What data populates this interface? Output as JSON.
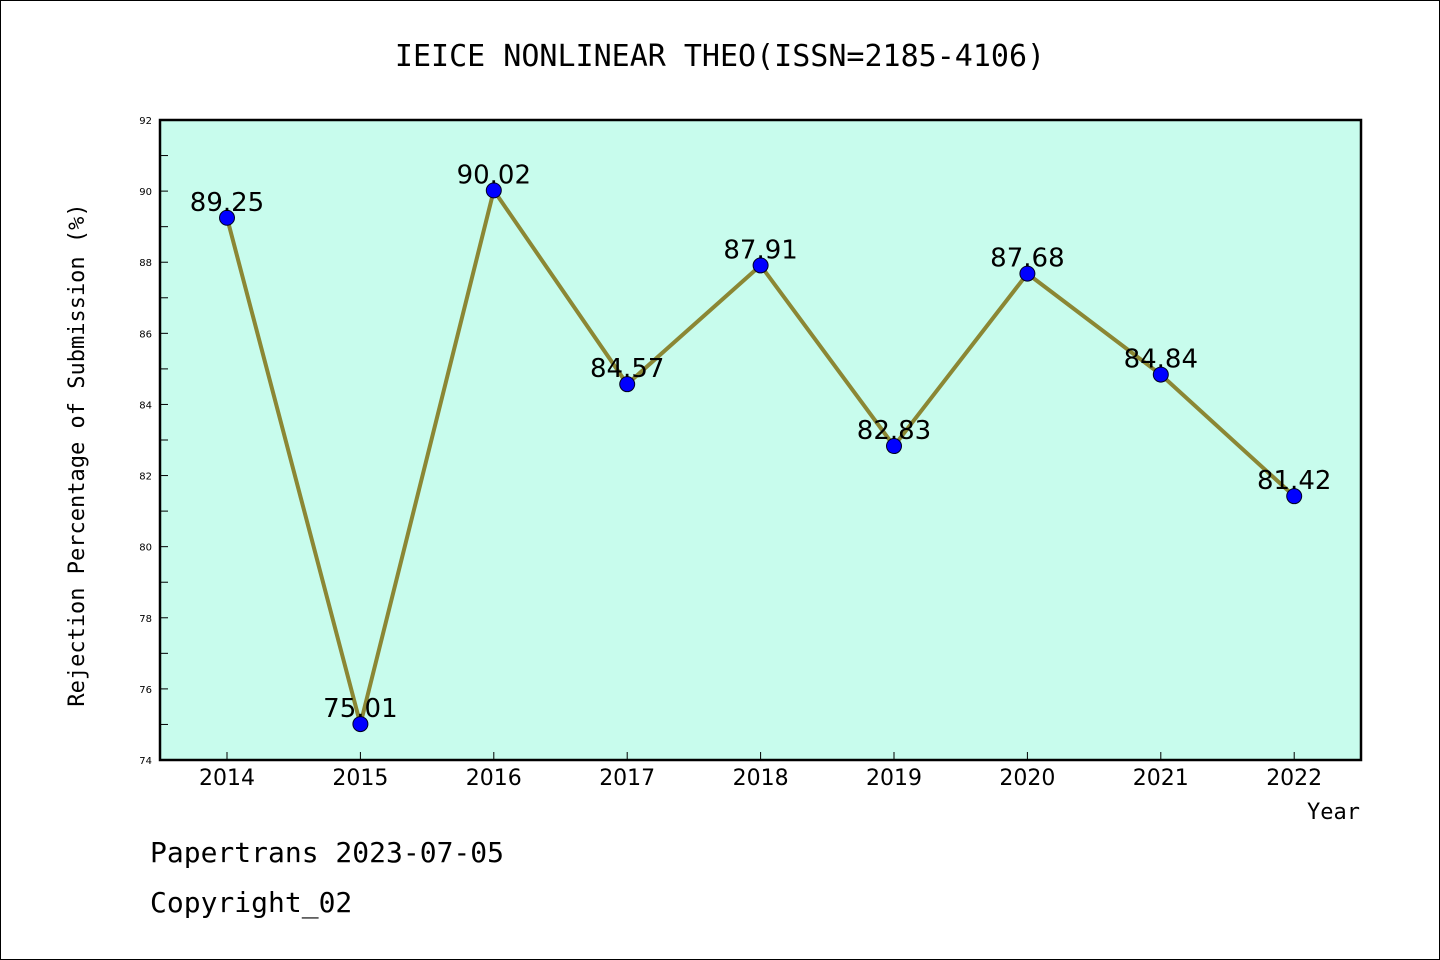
{
  "chart_data": {
    "type": "line",
    "title": "IEICE NONLINEAR THEO(ISSN=2185-4106)",
    "xlabel": "Year",
    "ylabel": "Rejection Percentage of Submission (%)",
    "categories": [
      "2014",
      "2015",
      "2016",
      "2017",
      "2018",
      "2019",
      "2020",
      "2021",
      "2022"
    ],
    "values": [
      89.25,
      75.01,
      90.02,
      84.57,
      87.91,
      82.83,
      87.68,
      84.84,
      81.42
    ],
    "data_labels": [
      "89.25",
      "75.01",
      "90.02",
      "84.57",
      "87.91",
      "82.83",
      "87.68",
      "84.84",
      "81.42"
    ],
    "ylim": [
      74,
      92
    ],
    "yticks": [
      74,
      76,
      78,
      80,
      82,
      84,
      86,
      88,
      90,
      92
    ],
    "grid": false,
    "legend": "none",
    "colors": {
      "plot_background": "#c8fced",
      "line": "#8b8734",
      "marker": "#0000ff"
    }
  },
  "footer": {
    "line1": "Papertrans 2023-07-05",
    "line2": "Copyright_02"
  }
}
